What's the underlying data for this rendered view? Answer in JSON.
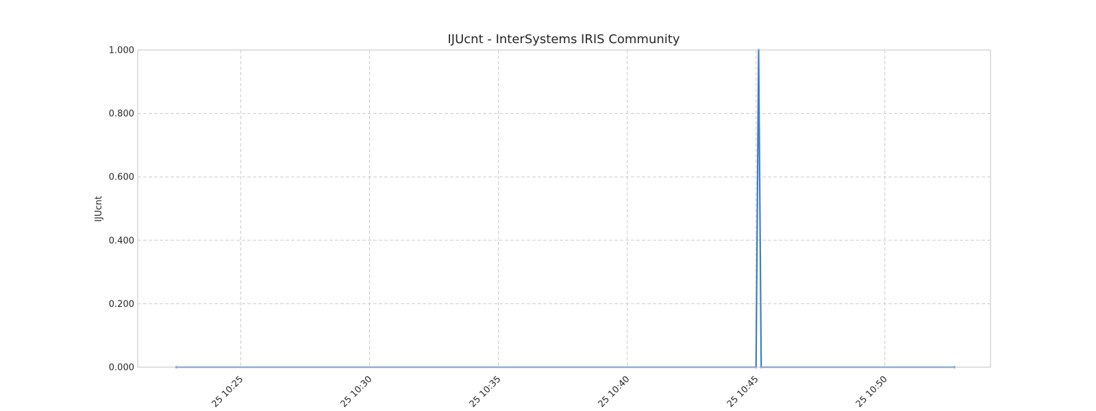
{
  "chart_data": {
    "type": "line",
    "title": "IJUcnt - InterSystems IRIS Community",
    "xlabel": "",
    "ylabel": "IJUcnt",
    "x_tick_labels": [
      "25 10:25",
      "25 10:30",
      "25 10:35",
      "25 10:40",
      "25 10:45",
      "25 10:50"
    ],
    "x_ticks_minutes": [
      25,
      30,
      35,
      40,
      45,
      50
    ],
    "xlim_minutes": [
      21,
      54.1
    ],
    "ylim": [
      0,
      1
    ],
    "y_ticks": [
      0,
      0.2,
      0.4,
      0.6,
      0.8,
      1.0
    ],
    "y_tick_format": "0.000",
    "grid": true,
    "series": [
      {
        "color": "#3d7cc9",
        "x_minutes": [
          22.5,
          45.0,
          45.1,
          45.2,
          52.7
        ],
        "values": [
          0,
          0,
          1,
          0,
          0
        ]
      }
    ]
  }
}
